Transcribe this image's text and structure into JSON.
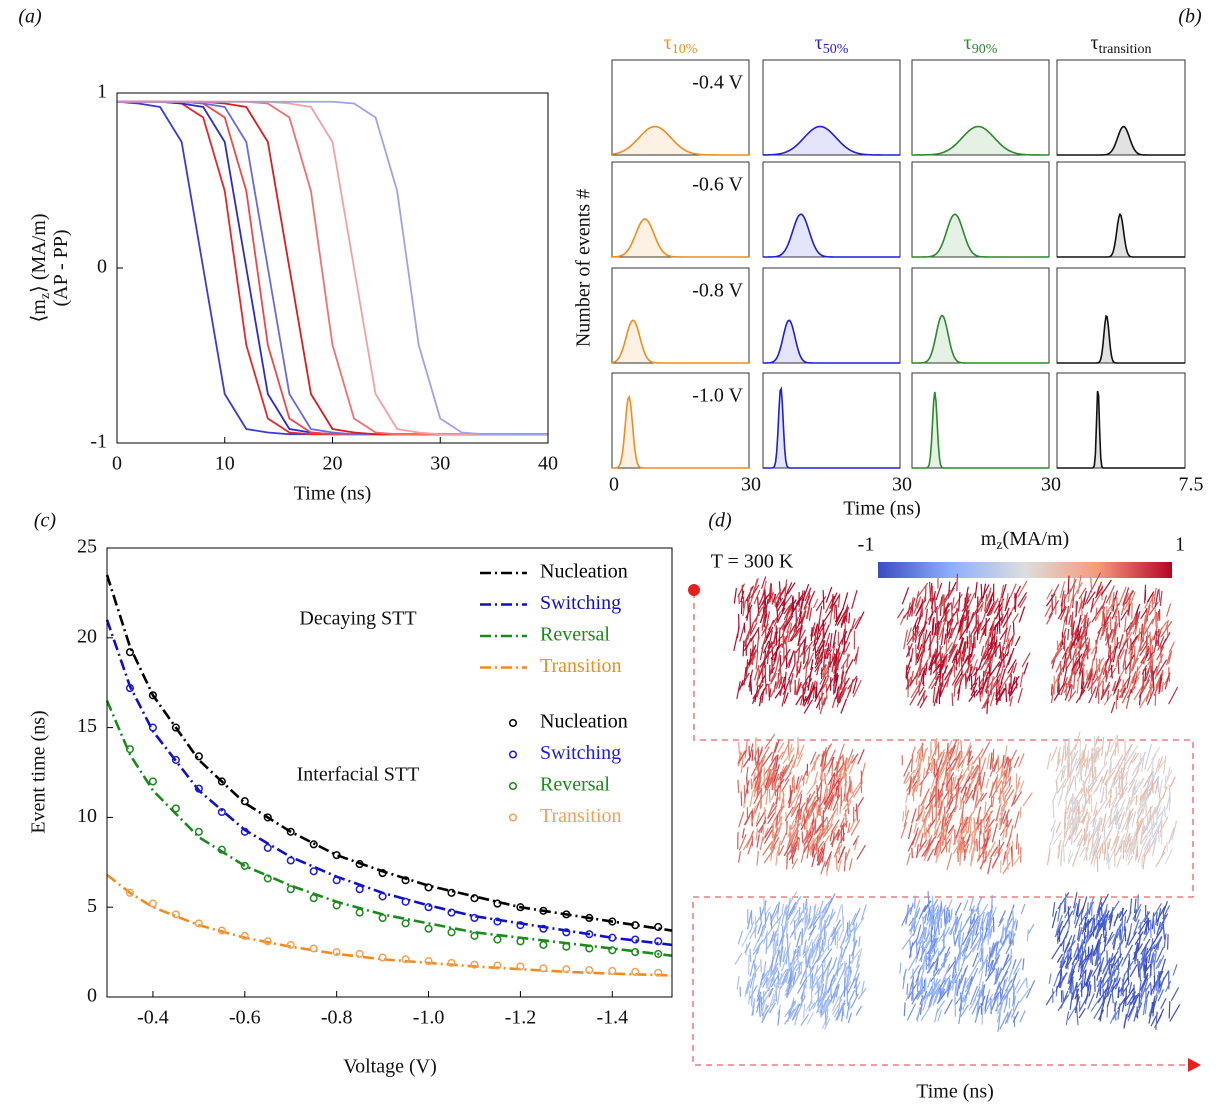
{
  "chart_data": [
    {
      "type": "line",
      "panel_label": "(a)",
      "ylabel": [
        {
          "text": "⟨m",
          "sub": "z",
          "after": "⟩ (MA/m)"
        },
        {
          "text": "(AP - PP)"
        }
      ],
      "xlabel": "Time (ns)",
      "xlim": [
        0,
        40
      ],
      "ylim": [
        -1,
        1
      ],
      "xticks": [
        0,
        10,
        20,
        30,
        40
      ],
      "yticks": [
        -1,
        0,
        1
      ],
      "x": [
        0,
        2,
        4,
        6,
        8,
        10,
        12,
        14,
        16,
        18,
        20,
        22,
        24,
        26,
        28,
        30,
        32,
        34,
        36,
        38,
        40
      ],
      "series": [
        {
          "color": "#3b3bd0",
          "values": [
            0.95,
            0.94,
            0.92,
            0.72,
            0,
            -0.72,
            -0.92,
            -0.94,
            -0.95,
            -0.95,
            -0.95,
            -0.95,
            -0.95,
            -0.95,
            -0.95,
            -0.95,
            -0.95,
            -0.95,
            -0.95,
            -0.95,
            -0.95
          ]
        },
        {
          "color": "#e8262a",
          "values": [
            0.95,
            0.95,
            0.95,
            0.94,
            0.86,
            0.44,
            -0.44,
            -0.86,
            -0.94,
            -0.95,
            -0.95,
            -0.95,
            -0.95,
            -0.95,
            -0.95,
            -0.95,
            -0.95,
            -0.95,
            -0.95,
            -0.95,
            -0.95
          ]
        },
        {
          "color": "#2c2cc8",
          "values": [
            0.95,
            0.95,
            0.95,
            0.94,
            0.92,
            0.72,
            0,
            -0.72,
            -0.92,
            -0.94,
            -0.95,
            -0.95,
            -0.95,
            -0.95,
            -0.95,
            -0.95,
            -0.95,
            -0.95,
            -0.95,
            -0.95,
            -0.95
          ]
        },
        {
          "color": "#f04848",
          "values": [
            0.95,
            0.95,
            0.95,
            0.95,
            0.94,
            0.86,
            0.44,
            -0.44,
            -0.86,
            -0.94,
            -0.95,
            -0.95,
            -0.95,
            -0.95,
            -0.95,
            -0.95,
            -0.95,
            -0.95,
            -0.95,
            -0.95,
            -0.95
          ]
        },
        {
          "color": "#6a6ae0",
          "values": [
            0.95,
            0.95,
            0.95,
            0.95,
            0.94,
            0.92,
            0.72,
            0,
            -0.72,
            -0.92,
            -0.94,
            -0.95,
            -0.95,
            -0.95,
            -0.95,
            -0.95,
            -0.95,
            -0.95,
            -0.95,
            -0.95,
            -0.95
          ]
        },
        {
          "color": "#d91e1e",
          "values": [
            0.95,
            0.95,
            0.95,
            0.95,
            0.95,
            0.94,
            0.92,
            0.72,
            0,
            -0.72,
            -0.92,
            -0.94,
            -0.95,
            -0.95,
            -0.95,
            -0.95,
            -0.95,
            -0.95,
            -0.95,
            -0.95,
            -0.95
          ]
        },
        {
          "color": "#f47070",
          "values": [
            0.95,
            0.95,
            0.95,
            0.95,
            0.95,
            0.95,
            0.95,
            0.94,
            0.86,
            0.44,
            -0.44,
            -0.86,
            -0.94,
            -0.95,
            -0.95,
            -0.95,
            -0.95,
            -0.95,
            -0.95,
            -0.95,
            -0.95
          ]
        },
        {
          "color": "#f5a0a0",
          "values": [
            0.95,
            0.95,
            0.95,
            0.95,
            0.95,
            0.95,
            0.95,
            0.95,
            0.94,
            0.92,
            0.72,
            0,
            -0.72,
            -0.92,
            -0.94,
            -0.95,
            -0.95,
            -0.95,
            -0.95,
            -0.95,
            -0.95
          ]
        },
        {
          "color": "#9ea2ee",
          "values": [
            0.95,
            0.95,
            0.95,
            0.95,
            0.95,
            0.95,
            0.95,
            0.95,
            0.95,
            0.95,
            0.95,
            0.94,
            0.86,
            0.44,
            -0.44,
            -0.86,
            -0.94,
            -0.95,
            -0.95,
            -0.95,
            -0.95
          ]
        }
      ]
    },
    {
      "type": "fit-grid",
      "panel_label": "(b)",
      "ylabel": "Number of events #",
      "xlabel": "Time (ns)",
      "rows": [
        "-0.4 V",
        "-0.6 V",
        "-0.8 V",
        "-1.0 V"
      ],
      "ylim": [
        0,
        1
      ],
      "columns": [
        {
          "symbol": "τ",
          "sub": "10%",
          "color": "#f08c1e",
          "xlim": [
            0,
            30
          ],
          "xticks": [
            0,
            30
          ],
          "fits": [
            {
              "mean": 9.4,
              "sd": 3.5,
              "height": 0.3
            },
            {
              "mean": 7.2,
              "sd": 2,
              "height": 0.4
            },
            {
              "mean": 4.6,
              "sd": 1.5,
              "height": 0.45
            },
            {
              "mean": 3.7,
              "sd": 0.8,
              "height": 0.75
            }
          ]
        },
        {
          "symbol": "τ",
          "sub": "50%",
          "color": "#1f1fd8",
          "xlim": [
            0,
            30
          ],
          "xticks": [
            30
          ],
          "fits": [
            {
              "mean": 12.5,
              "sd": 3.5,
              "height": 0.3
            },
            {
              "mean": 8.3,
              "sd": 1.8,
              "height": 0.45
            },
            {
              "mean": 5.7,
              "sd": 1.3,
              "height": 0.45
            },
            {
              "mean": 3.9,
              "sd": 0.5,
              "height": 0.85
            }
          ]
        },
        {
          "symbol": "τ",
          "sub": "90%",
          "color": "#2a8a2a",
          "xlim": [
            0,
            30
          ],
          "xticks": [
            30
          ],
          "fits": [
            {
              "mean": 14.5,
              "sd": 3.5,
              "height": 0.3
            },
            {
              "mean": 9.4,
              "sd": 1.8,
              "height": 0.45
            },
            {
              "mean": 6.6,
              "sd": 1.3,
              "height": 0.5
            },
            {
              "mean": 5,
              "sd": 0.5,
              "height": 0.8
            }
          ]
        },
        {
          "symbol": "τ",
          "sub": "transition",
          "color": "#111111",
          "xlim": [
            0,
            7.5
          ],
          "xticks": [
            7.5
          ],
          "fits": [
            {
              "mean": 3.9,
              "sd": 0.35,
              "height": 0.3
            },
            {
              "mean": 3.7,
              "sd": 0.2,
              "height": 0.45
            },
            {
              "mean": 2.9,
              "sd": 0.15,
              "height": 0.5
            },
            {
              "mean": 2.4,
              "sd": 0.08,
              "height": 0.85
            }
          ]
        }
      ]
    },
    {
      "type": "fit-scatter",
      "panel_label": "(c)",
      "xlabel": "Voltage (V)",
      "ylabel": "Event time (ns)",
      "xlim": [
        -0.3,
        -1.53
      ],
      "ylim": [
        0,
        25
      ],
      "xticks": [
        -0.4,
        -0.6,
        -0.8,
        {
          "value": -1,
          "label": "-1.0"
        },
        -1.2,
        -1.4
      ],
      "yticks": [
        0,
        5,
        10,
        15,
        20,
        25
      ],
      "annotations": [
        "Decaying STT",
        "Interfacial STT"
      ],
      "fit_x": [
        -0.3,
        -0.35,
        -0.4,
        -0.5,
        -0.6,
        -0.7,
        -0.8,
        -0.9,
        -1,
        -1.1,
        -1.2,
        -1.3,
        -1.4,
        -1.53
      ],
      "fits": [
        {
          "name": "Nucleation",
          "color": "#000000",
          "values": [
            23.5,
            19.5,
            16.8,
            13.2,
            10.8,
            9.2,
            7.9,
            7.0,
            6.2,
            5.6,
            5.0,
            4.6,
            4.2,
            3.7
          ]
        },
        {
          "name": "Switching",
          "color": "#1010c0",
          "values": [
            21,
            17.3,
            14.8,
            11.5,
            9.3,
            7.8,
            6.7,
            5.8,
            5.1,
            4.5,
            4.1,
            3.7,
            3.3,
            2.9
          ]
        },
        {
          "name": "Reversal",
          "color": "#1a8a1a",
          "values": [
            16.5,
            13.5,
            11.5,
            8.9,
            7.3,
            6.2,
            5.3,
            4.6,
            4.1,
            3.6,
            3.3,
            3.0,
            2.7,
            2.3
          ]
        },
        {
          "name": "Transition",
          "color": "#f08c1e",
          "values": [
            6.8,
            5.8,
            5.0,
            4.0,
            3.3,
            2.8,
            2.4,
            2.1,
            1.9,
            1.7,
            1.55,
            1.4,
            1.3,
            1.2
          ]
        }
      ],
      "point_x": [
        -0.35,
        -0.4,
        -0.45,
        -0.5,
        -0.55,
        -0.6,
        -0.65,
        -0.7,
        -0.75,
        -0.8,
        -0.85,
        -0.9,
        -0.95,
        -1,
        -1.05,
        -1.1,
        -1.15,
        -1.2,
        -1.25,
        -1.3,
        -1.35,
        -1.4,
        -1.45,
        -1.5
      ],
      "points": [
        {
          "name": "Nucleation",
          "color": "#000000",
          "values": [
            19.2,
            16.8,
            15.0,
            13.4,
            12.0,
            10.9,
            10.0,
            9.2,
            8.5,
            7.9,
            7.4,
            6.9,
            6.5,
            6.1,
            5.8,
            5.5,
            5.2,
            5.0,
            4.8,
            4.6,
            4.4,
            4.2,
            4.0,
            3.9
          ]
        },
        {
          "name": "Switching",
          "color": "#1a1ae0",
          "values": [
            17.2,
            15.0,
            13.2,
            11.6,
            10.3,
            9.2,
            8.3,
            7.6,
            7.0,
            6.5,
            6.0,
            5.6,
            5.3,
            5.0,
            4.7,
            4.4,
            4.2,
            4.0,
            3.8,
            3.6,
            3.5,
            3.3,
            3.2,
            3.1
          ]
        },
        {
          "name": "Reversal",
          "color": "#1a8a1a",
          "values": [
            13.8,
            12.0,
            10.5,
            9.2,
            8.2,
            7.3,
            6.6,
            6.0,
            5.5,
            5.1,
            4.7,
            4.4,
            4.1,
            3.8,
            3.6,
            3.4,
            3.2,
            3.1,
            2.9,
            2.8,
            2.7,
            2.6,
            2.5,
            2.4
          ]
        },
        {
          "name": "Transition",
          "color": "#f4a050",
          "values": [
            5.8,
            5.2,
            4.6,
            4.1,
            3.7,
            3.4,
            3.1,
            2.9,
            2.7,
            2.5,
            2.4,
            2.2,
            2.1,
            2.0,
            1.9,
            1.8,
            1.75,
            1.7,
            1.6,
            1.55,
            1.5,
            1.45,
            1.4,
            1.35
          ]
        }
      ]
    },
    {
      "type": "snapshots",
      "panel_label": "(d)",
      "label": "T = 300 K",
      "xlabel": "Time (ns)",
      "colorbar": {
        "symbol": "m",
        "sub": "z",
        "unit": "(MA/m)",
        "lim": [
          -1,
          1
        ],
        "ticks": [
          -1,
          1
        ]
      },
      "snapshots": [
        0.92,
        0.9,
        0.78,
        0.6,
        0.55,
        0.1,
        -0.4,
        -0.55,
        -0.9
      ]
    }
  ]
}
